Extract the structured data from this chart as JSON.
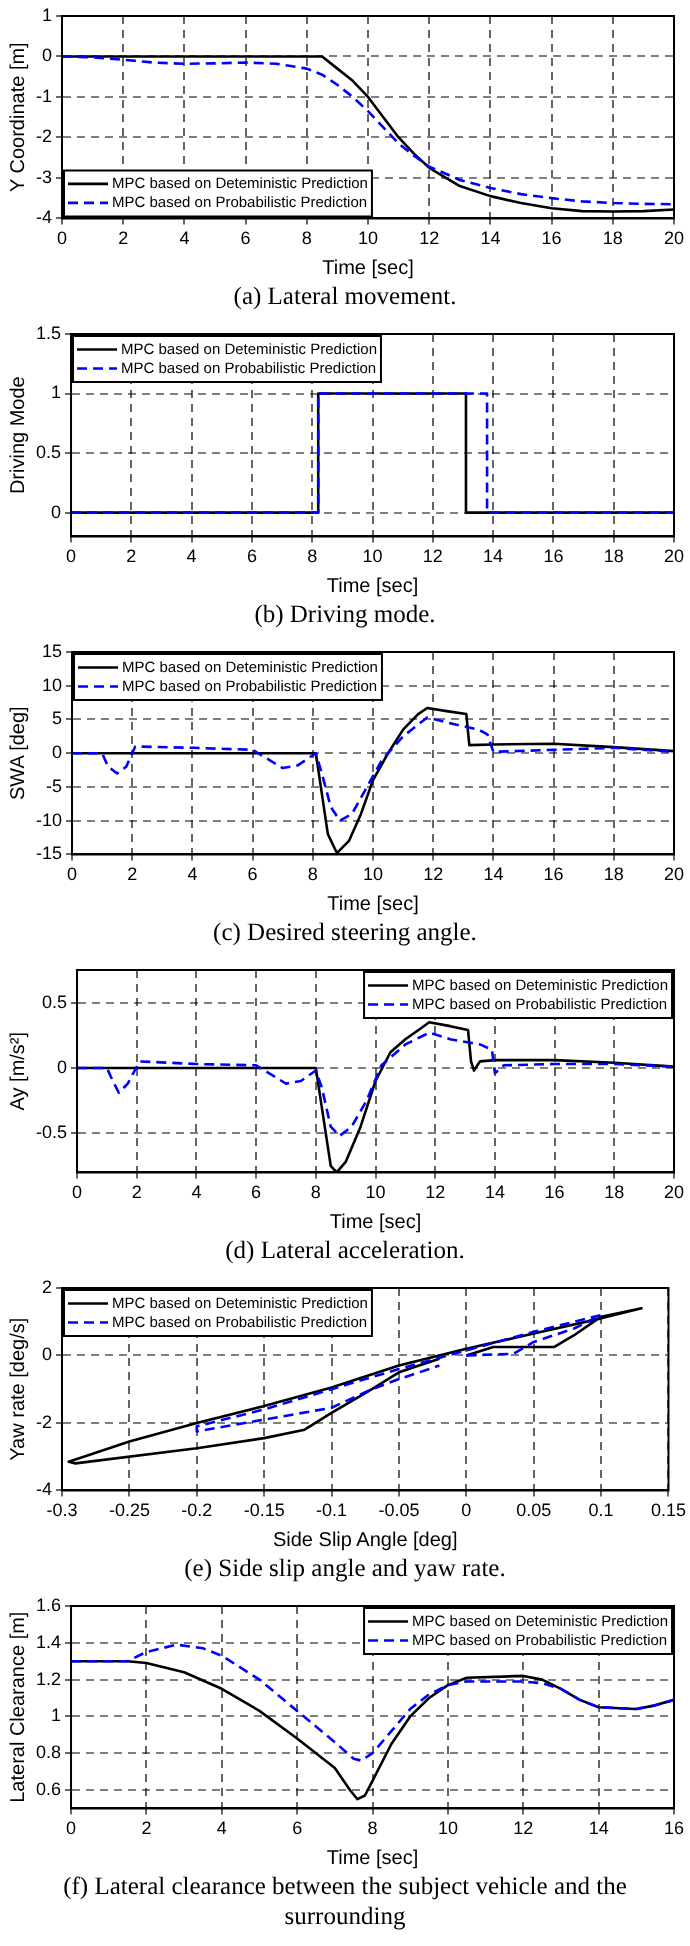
{
  "chart_data": [
    {
      "type": "line",
      "xlabel": "Time [sec]",
      "ylabel": "Y Coordinate [m]",
      "annotations": [
        "(a) Lateral movement."
      ],
      "xlim": [
        0,
        20
      ],
      "xticks": [
        0,
        2,
        4,
        6,
        8,
        10,
        12,
        14,
        16,
        18,
        20
      ],
      "ylim": [
        -4,
        1
      ],
      "yticks": [
        -4,
        -3,
        -2,
        -1,
        0,
        1
      ],
      "grid": true,
      "legend": "bottom left",
      "marker": "none",
      "series": [
        {
          "name": "MPC based on Deteministic Prediction",
          "color": "#000000",
          "line_style": "solid",
          "x": [
            0,
            8.5,
            9,
            9.5,
            10,
            10.5,
            11,
            11.5,
            12,
            13,
            14,
            15,
            16,
            17,
            18,
            19,
            20
          ],
          "values": [
            0,
            0,
            -0.3,
            -0.6,
            -1.0,
            -1.5,
            -2.0,
            -2.4,
            -2.75,
            -3.2,
            -3.45,
            -3.62,
            -3.75,
            -3.82,
            -3.83,
            -3.82,
            -3.78
          ]
        },
        {
          "name": "MPC based on Probabilistic Prediction",
          "color": "#0000ff",
          "line_style": "dashed",
          "x": [
            0,
            1,
            2,
            3,
            4,
            5,
            6,
            7,
            8,
            8.5,
            9,
            9.5,
            10,
            10.5,
            11,
            11.5,
            12,
            13,
            14,
            15,
            16,
            17,
            18,
            19,
            20
          ],
          "values": [
            0,
            -0.02,
            -0.08,
            -0.15,
            -0.18,
            -0.17,
            -0.15,
            -0.18,
            -0.3,
            -0.45,
            -0.7,
            -1.0,
            -1.35,
            -1.75,
            -2.15,
            -2.45,
            -2.72,
            -3.05,
            -3.25,
            -3.4,
            -3.5,
            -3.58,
            -3.62,
            -3.64,
            -3.65
          ]
        }
      ]
    },
    {
      "type": "step",
      "xlabel": "Time [sec]",
      "ylabel": "Driving Mode",
      "annotations": [
        "(b) Driving mode."
      ],
      "xlim": [
        0,
        20
      ],
      "xticks": [
        0,
        2,
        4,
        6,
        8,
        10,
        12,
        14,
        16,
        18,
        20
      ],
      "ylim": [
        -0.2,
        1.5
      ],
      "yticks": [
        0,
        0.5,
        1,
        1.5
      ],
      "grid": true,
      "legend": "top left",
      "marker": "none",
      "series": [
        {
          "name": "MPC based on Deteministic Prediction",
          "color": "#000000",
          "line_style": "solid",
          "x": [
            0,
            8.2,
            13.1,
            20
          ],
          "values": [
            0,
            1,
            0,
            0
          ]
        },
        {
          "name": "MPC based on Probabilistic Prediction",
          "color": "#0000ff",
          "line_style": "dashed",
          "x": [
            0,
            8.2,
            13.8,
            20
          ],
          "values": [
            0,
            1,
            0,
            0
          ]
        }
      ]
    },
    {
      "type": "line",
      "xlabel": "Time [sec]",
      "ylabel": "SWA [deg]",
      "annotations": [
        "(c) Desired steering angle."
      ],
      "xlim": [
        0,
        20
      ],
      "xticks": [
        0,
        2,
        4,
        6,
        8,
        10,
        12,
        14,
        16,
        18,
        20
      ],
      "ylim": [
        -15,
        15
      ],
      "yticks": [
        -15,
        -10,
        -5,
        0,
        5,
        10,
        15
      ],
      "grid": true,
      "legend": "top left",
      "marker": "none",
      "series": [
        {
          "name": "MPC based on Deteministic Prediction",
          "color": "#000000",
          "line_style": "solid",
          "x": [
            0,
            8.1,
            8.3,
            8.5,
            8.8,
            9.2,
            9.6,
            10,
            10.5,
            11,
            11.5,
            11.8,
            12.5,
            13.1,
            13.2,
            14,
            16,
            18,
            20
          ],
          "values": [
            0,
            0,
            -6,
            -12,
            -14.8,
            -13,
            -9,
            -4,
            0,
            3.5,
            5.8,
            6.7,
            6.2,
            5.8,
            1.2,
            1.3,
            1.4,
            0.9,
            0.3
          ]
        },
        {
          "name": "MPC based on Probabilistic Prediction",
          "color": "#0000ff",
          "line_style": "dashed",
          "x": [
            0,
            1,
            1.2,
            1.5,
            1.8,
            2.1,
            4,
            6,
            7,
            7.5,
            8.1,
            8.3,
            8.6,
            8.9,
            9.3,
            9.8,
            10.3,
            11,
            11.8,
            12.5,
            13.5,
            13.8,
            14,
            16,
            18,
            20
          ],
          "values": [
            0,
            0,
            -2,
            -3,
            -2,
            1,
            0.8,
            0.5,
            -2.2,
            -1.8,
            0,
            -3,
            -8,
            -10,
            -9,
            -5,
            -1,
            2.5,
            5.3,
            4.5,
            3.5,
            2.8,
            0.2,
            0.5,
            0.8,
            0.2
          ]
        }
      ]
    },
    {
      "type": "line",
      "xlabel": "Time [sec]",
      "ylabel": "Ay [m/s²]",
      "annotations": [
        "(d) Lateral acceleration."
      ],
      "xlim": [
        0,
        20
      ],
      "xticks": [
        0,
        2,
        4,
        6,
        8,
        10,
        12,
        14,
        16,
        18,
        20
      ],
      "ylim": [
        -0.8,
        0.75
      ],
      "yticks": [
        -0.5,
        0,
        0.5
      ],
      "grid": true,
      "legend": "top right",
      "marker": "none",
      "series": [
        {
          "name": "MPC based on Deteministic Prediction",
          "color": "#000000",
          "line_style": "solid",
          "x": [
            0,
            8,
            8.2,
            8.5,
            8.7,
            9,
            9.5,
            10,
            10.5,
            11,
            11.5,
            11.8,
            12.5,
            13.1,
            13.2,
            13.3,
            13.5,
            14,
            16,
            18,
            20
          ],
          "values": [
            0,
            0,
            -0.3,
            -0.75,
            -0.8,
            -0.72,
            -0.45,
            -0.1,
            0.12,
            0.22,
            0.3,
            0.35,
            0.32,
            0.29,
            0.05,
            -0.02,
            0.05,
            0.06,
            0.06,
            0.04,
            0.01
          ]
        },
        {
          "name": "MPC based on Probabilistic Prediction",
          "color": "#0000ff",
          "line_style": "dashed",
          "x": [
            0,
            1,
            1.2,
            1.4,
            1.7,
            2.1,
            4,
            6,
            7,
            7.5,
            8,
            8.2,
            8.5,
            8.8,
            9.2,
            9.7,
            10.2,
            11,
            11.8,
            12.5,
            13.5,
            13.9,
            14,
            14.3,
            16,
            18,
            20
          ],
          "values": [
            0,
            0,
            -0.1,
            -0.19,
            -0.12,
            0.05,
            0.03,
            0.02,
            -0.12,
            -0.1,
            -0.02,
            -0.15,
            -0.45,
            -0.52,
            -0.45,
            -0.25,
            0.02,
            0.18,
            0.27,
            0.22,
            0.18,
            0.14,
            -0.04,
            0.02,
            0.03,
            0.03,
            0.01
          ]
        }
      ]
    },
    {
      "type": "line",
      "xlabel": "Side Slip Angle [deg]",
      "ylabel": "Yaw rate [deg/s]",
      "annotations": [
        "(e) Side slip angle and yaw rate."
      ],
      "xlim": [
        -0.3,
        0.15
      ],
      "xticks": [
        -0.3,
        -0.25,
        -0.2,
        -0.15,
        -0.1,
        -0.05,
        0,
        0.05,
        0.1,
        0.15
      ],
      "ylim": [
        -4,
        2
      ],
      "yticks": [
        -4,
        -2,
        0,
        2
      ],
      "grid": true,
      "legend": "top left",
      "marker": "none",
      "series": [
        {
          "name": "MPC based on Deteministic Prediction",
          "color": "#000000",
          "line_style": "solid",
          "x": [
            0,
            0.02,
            0.065,
            0.08,
            0.1,
            0.13,
            0.1,
            0.05,
            0,
            -0.05,
            -0.1,
            -0.15,
            -0.2,
            -0.25,
            -0.295,
            -0.29,
            -0.2,
            -0.15,
            -0.12,
            -0.1,
            -0.07,
            -0.05,
            -0.02
          ],
          "values": [
            0,
            0.25,
            0.25,
            0.6,
            1.15,
            1.4,
            1.1,
            0.65,
            0.2,
            -0.3,
            -0.95,
            -1.5,
            -2.0,
            -2.55,
            -3.15,
            -3.2,
            -2.75,
            -2.45,
            -2.2,
            -1.7,
            -1.0,
            -0.5,
            -0.1
          ]
        },
        {
          "name": "MPC based on Probabilistic Prediction",
          "color": "#0000ff",
          "line_style": "dashed",
          "x": [
            0,
            0.035,
            0.05,
            0.08,
            0.1,
            0.05,
            0,
            -0.05,
            -0.1,
            -0.15,
            -0.2,
            -0.2,
            -0.15,
            -0.1,
            -0.07,
            -0.05,
            -0.02
          ],
          "values": [
            0,
            0.05,
            0.4,
            0.8,
            1.2,
            0.7,
            0.15,
            -0.4,
            -1.0,
            -1.6,
            -2.1,
            -2.25,
            -1.9,
            -1.55,
            -1.0,
            -0.7,
            -0.3
          ]
        }
      ]
    },
    {
      "type": "line",
      "xlabel": "Time [sec]",
      "ylabel": "Lateral Clearance [m]",
      "annotations": [
        "(f)  Lateral clearance between the subject vehicle and the surrounding"
      ],
      "xlim": [
        0,
        16
      ],
      "xticks": [
        0,
        2,
        4,
        6,
        8,
        10,
        12,
        14,
        16
      ],
      "ylim": [
        0.5,
        1.6
      ],
      "yticks": [
        0.6,
        0.8,
        1,
        1.2,
        1.4,
        1.6
      ],
      "grid": true,
      "legend": "top right",
      "marker": "none",
      "series": [
        {
          "name": "MPC based on Deteministic Prediction",
          "color": "#000000",
          "line_style": "solid",
          "x": [
            0,
            1.5,
            2,
            3,
            4,
            5,
            6,
            7,
            7.4,
            7.6,
            7.8,
            8,
            8.5,
            9,
            9.5,
            10,
            10.5,
            12,
            12.5,
            13,
            13.5,
            14,
            15,
            15.5,
            16
          ],
          "values": [
            1.3,
            1.3,
            1.29,
            1.24,
            1.15,
            1.03,
            0.88,
            0.72,
            0.6,
            0.55,
            0.57,
            0.65,
            0.85,
            1.0,
            1.1,
            1.17,
            1.21,
            1.22,
            1.2,
            1.15,
            1.09,
            1.05,
            1.04,
            1.06,
            1.09
          ]
        },
        {
          "name": "MPC based on Probabilistic Prediction",
          "color": "#0000ff",
          "line_style": "dashed",
          "x": [
            0,
            1.5,
            2,
            2.8,
            3.5,
            4,
            5,
            6,
            7,
            7.5,
            7.7,
            8,
            8.5,
            9,
            9.5,
            10,
            10.5,
            12,
            12.5,
            13,
            13.5,
            14,
            15,
            15.5,
            16
          ],
          "values": [
            1.3,
            1.3,
            1.35,
            1.39,
            1.37,
            1.33,
            1.2,
            1.03,
            0.86,
            0.77,
            0.76,
            0.8,
            0.92,
            1.04,
            1.12,
            1.17,
            1.19,
            1.19,
            1.18,
            1.15,
            1.09,
            1.05,
            1.04,
            1.06,
            1.09
          ]
        }
      ]
    }
  ]
}
